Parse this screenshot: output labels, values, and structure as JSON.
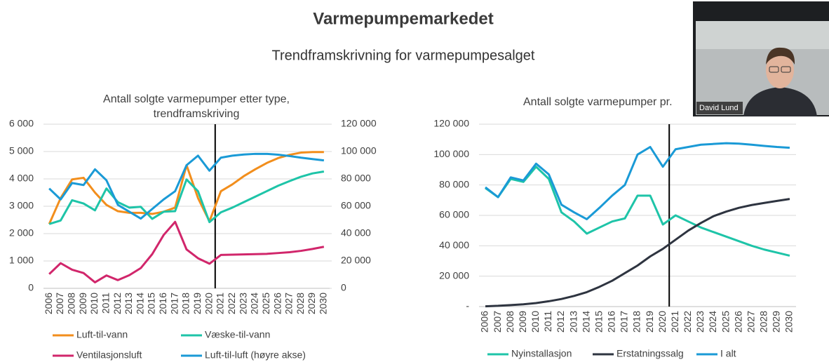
{
  "title": "Varmepumpemarkedet",
  "subtitle": "Trendframskrivning for varmepumpesalget",
  "video_overlay": {
    "name": "David Lund"
  },
  "chart_data": [
    {
      "type": "line",
      "title": "Antall solgte varmepumper etter type, trendframskriving",
      "categories": [
        "2006",
        "2007",
        "2008",
        "2009",
        "2010",
        "2011",
        "2012",
        "2013",
        "2014",
        "2015",
        "2016",
        "2017",
        "2018",
        "2019",
        "2020",
        "2021",
        "2022",
        "2023",
        "2024",
        "2025",
        "2026",
        "2027",
        "2028",
        "2029",
        "2030"
      ],
      "ylim": [
        0,
        6000
      ],
      "yticks": [
        0,
        {
          "value": 1000,
          "label": "1 000"
        },
        {
          "value": 2000,
          "label": "2 000"
        },
        {
          "value": 3000,
          "label": "3 000"
        },
        {
          "value": 4000,
          "label": "4 000"
        },
        {
          "value": 5000,
          "label": "5 000"
        },
        {
          "value": 6000,
          "label": "6 000"
        }
      ],
      "y2lim": [
        0,
        120000
      ],
      "y2ticks": [
        0,
        {
          "value": 20000,
          "label": "20 000"
        },
        {
          "value": 40000,
          "label": "40 000"
        },
        {
          "value": 60000,
          "label": "60 000"
        },
        {
          "value": 80000,
          "label": "80 000"
        },
        {
          "value": 100000,
          "label": "100 000"
        },
        {
          "value": 120000,
          "label": "120 000"
        }
      ],
      "grid": true,
      "series": [
        {
          "name": "Luft-til-vann",
          "color": "#f28e1c",
          "values": [
            2350,
            3300,
            3980,
            4040,
            3500,
            3050,
            2820,
            2760,
            2760,
            2720,
            2800,
            2950,
            4500,
            3300,
            2450,
            3550,
            3800,
            4100,
            4350,
            4580,
            4760,
            4880,
            4960,
            4980,
            4980
          ]
        },
        {
          "name": "Væske-til-vann",
          "color": "#1ec4a8",
          "values": [
            2350,
            2480,
            3220,
            3100,
            2850,
            3650,
            3150,
            2950,
            2980,
            2540,
            2800,
            2820,
            3980,
            3550,
            2420,
            2780,
            2950,
            3150,
            3350,
            3550,
            3750,
            3920,
            4080,
            4200,
            4270
          ]
        },
        {
          "name": "Ventilasjonsluft",
          "color": "#d1266b",
          "values": [
            520,
            920,
            680,
            560,
            220,
            470,
            300,
            480,
            740,
            1250,
            1950,
            2430,
            1420,
            1100,
            900,
            1220,
            1230,
            1240,
            1250,
            1260,
            1290,
            1320,
            1370,
            1440,
            1520
          ]
        },
        {
          "name": "Luft-til-luft (høyre akse)",
          "color": "#1a9ad6",
          "axis": "y2",
          "values": [
            73000,
            65000,
            77000,
            75500,
            87000,
            79000,
            61000,
            56000,
            51000,
            58000,
            65000,
            71000,
            90000,
            97000,
            86000,
            95500,
            97000,
            97800,
            98300,
            98300,
            97700,
            96700,
            95500,
            94500,
            93500
          ]
        }
      ]
    },
    {
      "type": "line",
      "title": "Antall solgte varmepumper pr.",
      "categories": [
        "2006",
        "2007",
        "2008",
        "2009",
        "2010",
        "2011",
        "2012",
        "2013",
        "2014",
        "2015",
        "2016",
        "2017",
        "2018",
        "2019",
        "2020",
        "2021",
        "2022",
        "2023",
        "2024",
        "2025",
        "2026",
        "2027",
        "2028",
        "2029",
        "2030"
      ],
      "ylim": [
        0,
        120000
      ],
      "yticks": [
        {
          "value": 0,
          "label": "-"
        },
        {
          "value": 20000,
          "label": "20 000"
        },
        {
          "value": 40000,
          "label": "40 000"
        },
        {
          "value": 60000,
          "label": "60 000"
        },
        {
          "value": 80000,
          "label": "80 000"
        },
        {
          "value": 100000,
          "label": "100 000"
        },
        {
          "value": 120000,
          "label": "120 000"
        }
      ],
      "grid": true,
      "series": [
        {
          "name": "Nyinstallasjon",
          "color": "#1ec4a8",
          "values": [
            78000,
            72000,
            84000,
            82000,
            92000,
            84000,
            62000,
            56000,
            48000,
            52000,
            56000,
            58000,
            73000,
            73000,
            54000,
            60000,
            56000,
            52000,
            49000,
            46000,
            43000,
            40000,
            37500,
            35500,
            33500
          ]
        },
        {
          "name": "Erstatningssalg",
          "color": "#2e3440",
          "values": [
            200,
            500,
            1000,
            1500,
            2300,
            3500,
            5000,
            7000,
            9500,
            13000,
            17000,
            22000,
            27000,
            33000,
            38000,
            44000,
            50000,
            55000,
            59500,
            62500,
            65000,
            66800,
            68200,
            69500,
            70800
          ]
        },
        {
          "name": "I alt",
          "color": "#1a9ad6",
          "values": [
            78500,
            72000,
            85000,
            83000,
            94000,
            87000,
            67000,
            62000,
            57500,
            65000,
            73000,
            80000,
            100000,
            105000,
            92000,
            103500,
            105000,
            106500,
            107000,
            107500,
            107200,
            106500,
            105700,
            105000,
            104500
          ]
        }
      ]
    }
  ]
}
